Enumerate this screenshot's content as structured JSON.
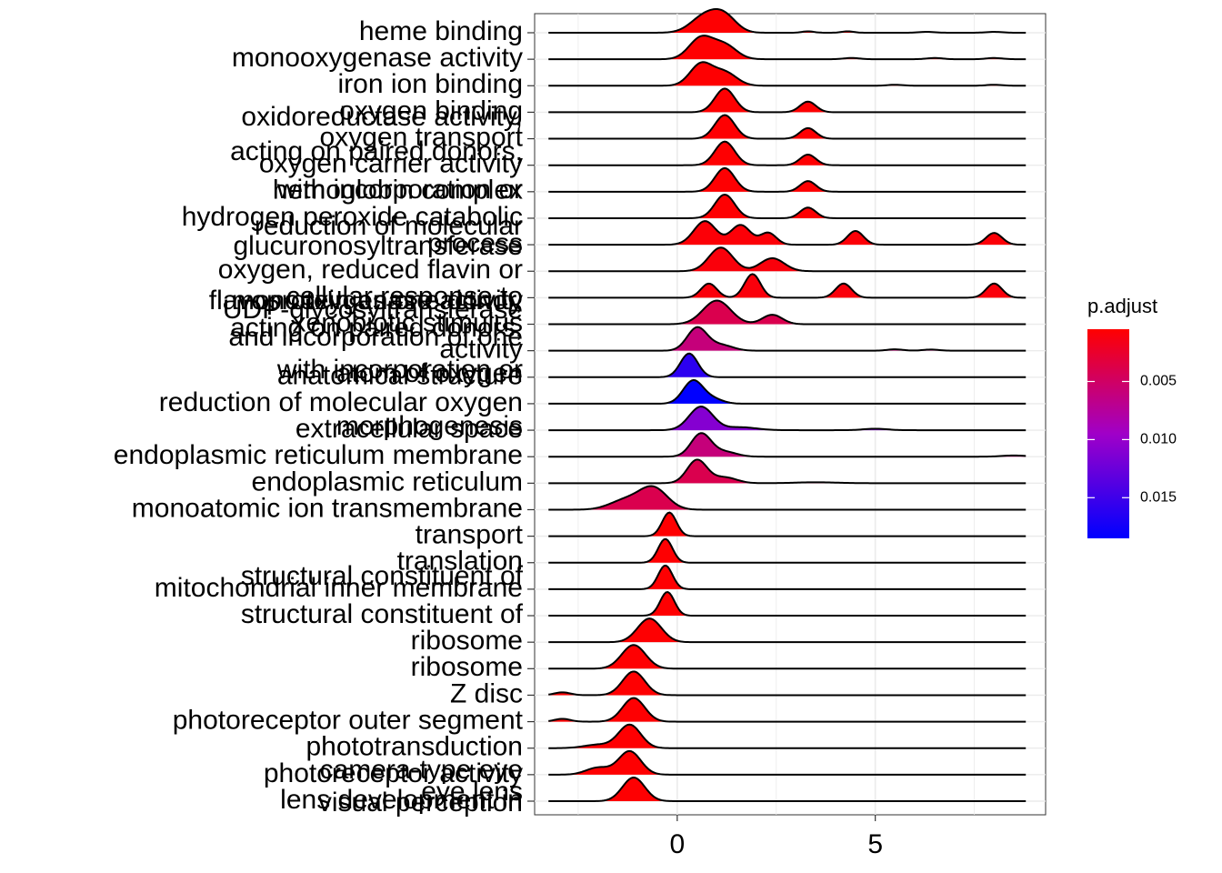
{
  "chart_data": {
    "type": "ridgeline",
    "title": "",
    "xlabel": "",
    "ylabel": "",
    "xlim": [
      -3.6,
      9.3
    ],
    "x_ticks": [
      0,
      5
    ],
    "x_tick_labels": [
      "0",
      "5"
    ],
    "grid": true,
    "legend": {
      "title": "p.adjust",
      "position": "right",
      "ticks": [
        0.005,
        0.01,
        0.015
      ],
      "tick_labels": [
        "0.005",
        "0.010",
        "0.015"
      ],
      "range": [
        0.0005,
        0.0185
      ],
      "low_color": "#ff0000",
      "mid_color": "#a000c8",
      "high_color": "#0000ff"
    },
    "categories": [
      {
        "label": "heme binding",
        "p_adjust": 0.0006,
        "peaks": [
          [
            0.7,
            0.35,
            0.95
          ],
          [
            1.2,
            0.3,
            0.85
          ],
          [
            3.3,
            0.15,
            0.08
          ],
          [
            4.3,
            0.15,
            0.08
          ],
          [
            6.3,
            0.2,
            0.05
          ],
          [
            8.0,
            0.2,
            0.05
          ]
        ]
      },
      {
        "label": "monooxygenase activity",
        "p_adjust": 0.0006,
        "peaks": [
          [
            0.6,
            0.3,
            0.85
          ],
          [
            1.2,
            0.3,
            0.55
          ],
          [
            4.4,
            0.2,
            0.05
          ],
          [
            6.5,
            0.2,
            0.05
          ],
          [
            8.0,
            0.2,
            0.05
          ]
        ]
      },
      {
        "label": "iron ion binding",
        "p_adjust": 0.0006,
        "peaks": [
          [
            0.6,
            0.28,
            0.9
          ],
          [
            1.2,
            0.3,
            0.55
          ],
          [
            5.5,
            0.2,
            0.04
          ],
          [
            8.0,
            0.2,
            0.04
          ]
        ]
      },
      {
        "label": "oxygen binding",
        "p_adjust": 0.0006,
        "peaks": [
          [
            1.2,
            0.25,
            1.0
          ],
          [
            3.3,
            0.2,
            0.45
          ]
        ]
      },
      {
        "label": "oxygen transport",
        "p_adjust": 0.0006,
        "peaks": [
          [
            1.2,
            0.25,
            1.0
          ],
          [
            3.3,
            0.2,
            0.45
          ]
        ]
      },
      {
        "label": "oxygen carrier activity",
        "p_adjust": 0.0006,
        "peaks": [
          [
            1.2,
            0.25,
            1.0
          ],
          [
            3.3,
            0.2,
            0.45
          ]
        ]
      },
      {
        "label": "hemoglobin complex",
        "p_adjust": 0.0006,
        "peaks": [
          [
            1.2,
            0.25,
            1.0
          ],
          [
            3.3,
            0.2,
            0.45
          ]
        ]
      },
      {
        "label": "hydrogen peroxide catabolic",
        "p_adjust": 0.0006,
        "peaks": [
          [
            1.2,
            0.25,
            1.0
          ],
          [
            3.3,
            0.2,
            0.45
          ]
        ]
      },
      {
        "label": "process",
        "p_adjust": 0.0008,
        "peaks": [
          [
            0.7,
            0.28,
            0.6
          ],
          [
            1.6,
            0.25,
            0.5
          ],
          [
            2.3,
            0.2,
            0.3
          ],
          [
            4.5,
            0.2,
            0.35
          ],
          [
            8.0,
            0.2,
            0.3
          ]
        ]
      },
      {
        "label": "oxygen, reduced flavin or",
        "p_adjust": 0.001,
        "peaks": [
          [
            1.1,
            0.3,
            1.0
          ],
          [
            2.4,
            0.3,
            0.55
          ]
        ]
      },
      {
        "label": "cellular response to",
        "p_adjust": 0.001,
        "peaks": [
          [
            0.8,
            0.2,
            0.45
          ],
          [
            1.9,
            0.2,
            0.75
          ],
          [
            4.2,
            0.2,
            0.45
          ],
          [
            8.0,
            0.2,
            0.45
          ]
        ]
      },
      {
        "label": "xenobiotic stimulus",
        "p_adjust": 0.004,
        "peaks": [
          [
            1.0,
            0.35,
            1.0
          ],
          [
            2.4,
            0.25,
            0.4
          ]
        ]
      },
      {
        "label": "activity",
        "p_adjust": 0.006,
        "peaks": [
          [
            0.5,
            0.25,
            1.0
          ],
          [
            1.1,
            0.3,
            0.25
          ],
          [
            5.5,
            0.2,
            0.06
          ],
          [
            6.4,
            0.2,
            0.05
          ]
        ]
      },
      {
        "label": "anatomical structure",
        "p_adjust": 0.016,
        "peaks": [
          [
            0.3,
            0.22,
            1.0
          ]
        ]
      },
      {
        "label": "reduction of molecular oxygen",
        "p_adjust": 0.0185,
        "peaks": [
          [
            0.4,
            0.25,
            1.0
          ],
          [
            0.9,
            0.25,
            0.2
          ]
        ]
      },
      {
        "label": "extracellular space",
        "p_adjust": 0.011,
        "peaks": [
          [
            0.6,
            0.3,
            0.8
          ],
          [
            1.6,
            0.4,
            0.1
          ],
          [
            5.0,
            0.3,
            0.05
          ]
        ]
      },
      {
        "label": "endoplasmic reticulum membrane",
        "p_adjust": 0.006,
        "peaks": [
          [
            0.6,
            0.25,
            0.95
          ],
          [
            1.2,
            0.3,
            0.2
          ],
          [
            8.5,
            0.3,
            0.05
          ]
        ]
      },
      {
        "label": "endoplasmic reticulum",
        "p_adjust": 0.004,
        "peaks": [
          [
            0.5,
            0.25,
            1.0
          ],
          [
            1.2,
            0.3,
            0.25
          ],
          [
            3.5,
            0.5,
            0.04
          ]
        ]
      },
      {
        "label": "monoatomic ion transmembrane",
        "p_adjust": 0.004,
        "peaks": [
          [
            -0.6,
            0.35,
            1.0
          ],
          [
            -1.3,
            0.4,
            0.45
          ]
        ]
      },
      {
        "label": "transport",
        "p_adjust": 0.0006,
        "peaks": [
          [
            -0.2,
            0.18,
            1.0
          ]
        ]
      },
      {
        "label": "translation",
        "p_adjust": 0.0006,
        "peaks": [
          [
            -0.3,
            0.18,
            1.0
          ]
        ]
      },
      {
        "label": "mitochondrial inner membrane",
        "p_adjust": 0.0006,
        "peaks": [
          [
            -0.3,
            0.18,
            1.0
          ]
        ]
      },
      {
        "label": "structural constituent of",
        "p_adjust": 0.0006,
        "peaks": [
          [
            -0.25,
            0.18,
            1.0
          ]
        ]
      },
      {
        "label": "ribosome",
        "p_adjust": 0.0006,
        "peaks": [
          [
            -0.7,
            0.3,
            1.0
          ]
        ]
      },
      {
        "label": "ribosome",
        "p_adjust": 0.0006,
        "peaks": [
          [
            -1.1,
            0.3,
            1.0
          ]
        ]
      },
      {
        "label": "Z disc",
        "p_adjust": 0.0006,
        "peaks": [
          [
            -1.1,
            0.28,
            1.0
          ],
          [
            -2.9,
            0.2,
            0.12
          ]
        ]
      },
      {
        "label": "photoreceptor outer segment",
        "p_adjust": 0.0006,
        "peaks": [
          [
            -1.1,
            0.28,
            1.0
          ],
          [
            -2.9,
            0.2,
            0.12
          ]
        ]
      },
      {
        "label": "phototransduction",
        "p_adjust": 0.0006,
        "peaks": [
          [
            -1.2,
            0.28,
            1.0
          ],
          [
            -2.0,
            0.35,
            0.15
          ]
        ]
      },
      {
        "label": "photoreceptor activity",
        "p_adjust": 0.0006,
        "peaks": [
          [
            -1.2,
            0.28,
            1.0
          ],
          [
            -2.0,
            0.3,
            0.3
          ]
        ]
      },
      {
        "label": "lens development in",
        "p_adjust": 0.0006,
        "peaks": [
          [
            -1.1,
            0.28,
            1.0
          ]
        ]
      }
    ],
    "overlap_labels": [
      "oxidoreductase activity,",
      "acting on paired donors,",
      "with incorporation or",
      "reduction of molecular",
      "glucuronosyltransferase",
      "flavoprotein as one donor,",
      "UDP-glycosyltransferase",
      "monooxygenase activity",
      "acting on paired donors,",
      "and incorporation of one",
      "atom of oxygen",
      "with incorporation or",
      "morphogenesis",
      "structural constituent of",
      "camera-type eye",
      "eye lens",
      "visual perception"
    ]
  }
}
